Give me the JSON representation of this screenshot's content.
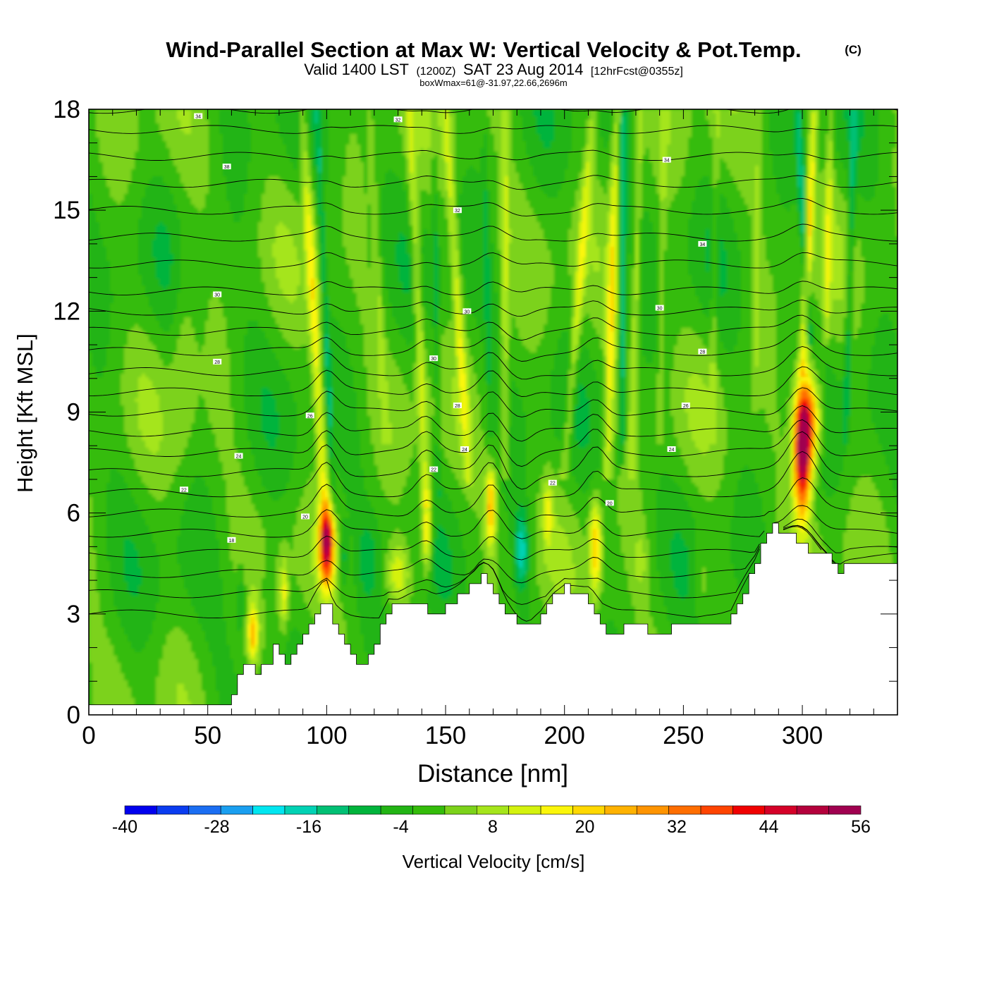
{
  "title": {
    "main": "Wind-Parallel Section at Max W: Vertical Velocity & Pot.Temp.",
    "copyright": "(C)",
    "valid_prefix": "Valid 1400 LST",
    "valid_utc": "(1200Z)",
    "valid_date": "SAT 23 Aug 2014",
    "forecast": "[12hrFcst@0355z]",
    "box_info": "boxWmax=61@-31.97,22.66,2696m"
  },
  "chart_data": {
    "type": "heatmap",
    "xlabel": "Distance [nm]",
    "ylabel": "Height [Kft MSL]",
    "xlim": [
      0,
      340
    ],
    "ylim": [
      0,
      18
    ],
    "xticks": [
      0,
      50,
      100,
      150,
      200,
      250,
      300
    ],
    "yticks": [
      0,
      3,
      6,
      9,
      12,
      15,
      18
    ],
    "colorbar": {
      "label": "Vertical Velocity [cm/s]",
      "min": -40,
      "max": 56,
      "step": 4,
      "tick_labels": [
        "-40",
        "-28",
        "-16",
        "-4",
        "8",
        "20",
        "32",
        "44",
        "56"
      ],
      "colors": [
        "#0000ee",
        "#0a3cf0",
        "#1b6ef2",
        "#1a9ff0",
        "#00e6f0",
        "#00d2b4",
        "#00c074",
        "#00b43c",
        "#22b414",
        "#34bc0a",
        "#7cd21a",
        "#a5e51b",
        "#d4f20e",
        "#fbf60a",
        "#ffd800",
        "#ffb200",
        "#ff9400",
        "#ff6e00",
        "#ff4400",
        "#f00000",
        "#d50028",
        "#b4003c",
        "#a00050"
      ]
    },
    "terrain": {
      "distance_nm": [
        0,
        58,
        60,
        62,
        65,
        68,
        70,
        72,
        75,
        78,
        80,
        83,
        86,
        90,
        93,
        97,
        100,
        103,
        106,
        110,
        114,
        118,
        122,
        126,
        130,
        135,
        140,
        145,
        150,
        155,
        160,
        165,
        170,
        175,
        180,
        185,
        190,
        195,
        200,
        205,
        210,
        215,
        220,
        225,
        230,
        240,
        245,
        250,
        255,
        260,
        265,
        270,
        275,
        280,
        283,
        286,
        290,
        295,
        300,
        305,
        310,
        312,
        315,
        318,
        320,
        340
      ],
      "height_kft": [
        0.35,
        0.35,
        0.7,
        1.05,
        1.6,
        1.5,
        1.05,
        1.3,
        1.6,
        2.2,
        1.9,
        1.5,
        1.75,
        2.3,
        2.8,
        3.2,
        3.3,
        2.5,
        2.2,
        1.85,
        1.45,
        1.85,
        2.6,
        3.3,
        3.25,
        3.35,
        3.2,
        3.0,
        3.25,
        3.5,
        3.85,
        4.1,
        3.7,
        3.1,
        2.8,
        2.6,
        2.9,
        3.5,
        3.8,
        3.65,
        3.3,
        2.65,
        2.4,
        2.6,
        2.6,
        2.4,
        2.6,
        2.6,
        2.6,
        2.7,
        2.75,
        2.85,
        3.7,
        4.45,
        5.1,
        5.75,
        5.5,
        5.25,
        5.0,
        4.85,
        4.7,
        4.55,
        4.3,
        4.5,
        4.55,
        4.55
      ]
    },
    "cells": [
      {
        "x": 100,
        "y": 5.0,
        "sx": 3.0,
        "sy": 1.1,
        "peak": 46
      },
      {
        "x": 300,
        "y": 7.8,
        "sx": 3.5,
        "sy": 1.8,
        "peak": 50
      },
      {
        "x": 303,
        "y": 8.8,
        "sx": 5.0,
        "sy": 1.4,
        "peak": 30
      },
      {
        "x": 69,
        "y": 2.4,
        "sx": 2.0,
        "sy": 0.8,
        "peak": 22
      },
      {
        "x": 82,
        "y": 3.6,
        "sx": 1.8,
        "sy": 1.0,
        "peak": 14
      },
      {
        "x": 142,
        "y": 5.5,
        "sx": 2.2,
        "sy": 1.3,
        "peak": 22
      },
      {
        "x": 169,
        "y": 6.2,
        "sx": 2.2,
        "sy": 1.2,
        "peak": 24
      },
      {
        "x": 213,
        "y": 5.0,
        "sx": 2.4,
        "sy": 1.4,
        "peak": 22
      },
      {
        "x": 130,
        "y": 4.2,
        "sx": 5.0,
        "sy": 0.9,
        "peak": 14
      },
      {
        "x": 182,
        "y": 4.9,
        "sx": 3.0,
        "sy": 1.2,
        "peak": -16
      },
      {
        "x": 117,
        "y": 4.6,
        "sx": 4.0,
        "sy": 1.1,
        "peak": -6
      },
      {
        "x": 107,
        "y": 4.6,
        "sx": 2.0,
        "sy": 1.0,
        "peak": -8
      },
      {
        "x": 64,
        "y": 3.4,
        "sx": 2.0,
        "sy": 1.0,
        "peak": -9
      },
      {
        "x": 75,
        "y": 3.8,
        "sx": 2.0,
        "sy": 0.9,
        "peak": -5
      },
      {
        "x": 193,
        "y": 6.0,
        "sx": 2.0,
        "sy": 1.0,
        "peak": 12
      },
      {
        "x": 232,
        "y": 4.6,
        "sx": 3.0,
        "sy": 1.0,
        "peak": 6
      },
      {
        "x": 258,
        "y": 4.0,
        "sx": 4.0,
        "sy": 1.2,
        "peak": 6
      },
      {
        "x": 40,
        "y": 11.0,
        "sx": 5.0,
        "sy": 3.0,
        "peak": 6
      }
    ],
    "plumes": [
      {
        "x0": 100,
        "y0": 5.0,
        "x1": 90,
        "y1": 18.0,
        "width": 2.2,
        "peak": 16
      },
      {
        "x0": 103,
        "y0": 6.0,
        "x1": 96,
        "y1": 18.0,
        "width": 1.3,
        "peak": -8
      },
      {
        "x0": 142,
        "y0": 6.2,
        "x1": 135,
        "y1": 18.0,
        "width": 2.0,
        "peak": 12
      },
      {
        "x0": 147,
        "y0": 6.5,
        "x1": 145,
        "y1": 18.0,
        "width": 1.3,
        "peak": -6
      },
      {
        "x0": 160,
        "y0": 6.8,
        "x1": 150,
        "y1": 18.0,
        "width": 2.0,
        "peak": 12
      },
      {
        "x0": 169,
        "y0": 7.2,
        "x1": 166,
        "y1": 18.0,
        "width": 1.3,
        "peak": -5
      },
      {
        "x0": 175,
        "y0": 7.0,
        "x1": 175,
        "y1": 18.0,
        "width": 1.8,
        "peak": 10
      },
      {
        "x0": 200,
        "y0": 7.0,
        "x1": 212,
        "y1": 18.0,
        "width": 2.0,
        "peak": 12
      },
      {
        "x0": 218,
        "y0": 7.0,
        "x1": 222,
        "y1": 18.0,
        "width": 2.0,
        "peak": 16
      },
      {
        "x0": 224,
        "y0": 7.4,
        "x1": 225,
        "y1": 18.0,
        "width": 1.3,
        "peak": -14
      },
      {
        "x0": 228,
        "y0": 7.0,
        "x1": 232,
        "y1": 18.0,
        "width": 1.5,
        "peak": 10
      },
      {
        "x0": 240,
        "y0": 8.0,
        "x1": 242,
        "y1": 18.0,
        "width": 1.5,
        "peak": 6
      },
      {
        "x0": 300,
        "y0": 10.0,
        "x1": 305,
        "y1": 18.0,
        "width": 1.8,
        "peak": 18
      },
      {
        "x0": 303,
        "y0": 11.0,
        "x1": 298,
        "y1": 18.0,
        "width": 1.5,
        "peak": -14
      },
      {
        "x0": 310,
        "y0": 11.0,
        "x1": 312,
        "y1": 18.0,
        "width": 1.5,
        "peak": 10
      },
      {
        "x0": 125,
        "y0": 8.0,
        "x1": 118,
        "y1": 18.0,
        "width": 1.5,
        "peak": 6
      },
      {
        "x0": 262,
        "y0": 8.0,
        "x1": 264,
        "y1": 18.0,
        "width": 1.5,
        "peak": 6
      },
      {
        "x0": 280,
        "y0": 9.0,
        "x1": 282,
        "y1": 18.0,
        "width": 1.5,
        "peak": 6
      },
      {
        "x0": 318,
        "y0": 8.0,
        "x1": 322,
        "y1": 18.0,
        "width": 1.4,
        "peak": -10
      }
    ],
    "theta_contours": {
      "base_heights_kft": [
        3.0,
        3.6,
        4.2,
        4.8,
        5.4,
        6.0,
        6.6,
        7.2,
        7.8,
        8.4,
        9.0,
        9.6,
        10.2,
        10.8,
        11.4,
        12.0,
        12.6,
        13.4,
        14.2,
        15.0,
        15.8,
        16.6,
        17.4,
        18.0
      ],
      "labels": [
        {
          "text": "34",
          "x": 46,
          "y": 17.8
        },
        {
          "text": "32",
          "x": 130,
          "y": 17.7
        },
        {
          "text": "38",
          "x": 58,
          "y": 16.3
        },
        {
          "text": "34",
          "x": 243,
          "y": 16.5
        },
        {
          "text": "32",
          "x": 155,
          "y": 15.0
        },
        {
          "text": "34",
          "x": 258,
          "y": 14.0
        },
        {
          "text": "30",
          "x": 54,
          "y": 12.5
        },
        {
          "text": "30",
          "x": 159,
          "y": 12.0
        },
        {
          "text": "30",
          "x": 240,
          "y": 12.1
        },
        {
          "text": "28",
          "x": 54,
          "y": 10.5
        },
        {
          "text": "30",
          "x": 145,
          "y": 10.6
        },
        {
          "text": "28",
          "x": 258,
          "y": 10.8
        },
        {
          "text": "26",
          "x": 93,
          "y": 8.9
        },
        {
          "text": "28",
          "x": 155,
          "y": 9.2
        },
        {
          "text": "26",
          "x": 251,
          "y": 9.2
        },
        {
          "text": "24",
          "x": 63,
          "y": 7.7
        },
        {
          "text": "24",
          "x": 158,
          "y": 7.9
        },
        {
          "text": "24",
          "x": 245,
          "y": 7.9
        },
        {
          "text": "22",
          "x": 145,
          "y": 7.3
        },
        {
          "text": "22",
          "x": 40,
          "y": 6.7
        },
        {
          "text": "22",
          "x": 195,
          "y": 6.9
        },
        {
          "text": "20",
          "x": 91,
          "y": 5.9
        },
        {
          "text": "20",
          "x": 219,
          "y": 6.3
        },
        {
          "text": "18",
          "x": 60,
          "y": 5.2
        }
      ]
    }
  }
}
